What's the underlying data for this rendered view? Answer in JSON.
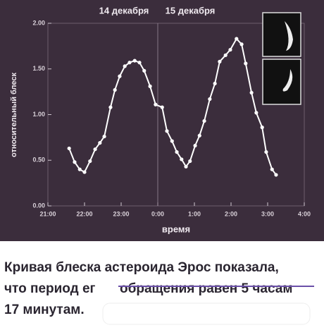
{
  "chart_data": {
    "type": "line",
    "annotations": [
      "14 декабря",
      "15 декабря"
    ],
    "xlabel": "время",
    "ylabel": "относительный блеск",
    "x": [
      21.58,
      21.73,
      21.87,
      22.0,
      22.15,
      22.29,
      22.42,
      22.54,
      22.71,
      22.83,
      22.96,
      23.1,
      23.23,
      23.37,
      23.5,
      23.63,
      23.79,
      23.94,
      24.12,
      24.25,
      24.39,
      24.52,
      24.65,
      24.77,
      24.88,
      25.02,
      25.14,
      25.27,
      25.42,
      25.56,
      25.69,
      25.85,
      25.98,
      26.15,
      26.29,
      26.4,
      26.56,
      26.69,
      26.85,
      26.96,
      27.12,
      27.23
    ],
    "series": [
      {
        "color": "#ffffff",
        "values": [
          0.63,
          0.48,
          0.4,
          0.37,
          0.49,
          0.62,
          0.69,
          0.76,
          1.08,
          1.27,
          1.42,
          1.53,
          1.57,
          1.59,
          1.57,
          1.48,
          1.31,
          1.11,
          1.08,
          0.82,
          0.71,
          0.59,
          0.51,
          0.43,
          0.49,
          0.66,
          0.77,
          0.93,
          1.17,
          1.34,
          1.58,
          1.65,
          1.71,
          1.83,
          1.77,
          1.56,
          1.24,
          1.02,
          0.86,
          0.59,
          0.4,
          0.34
        ]
      }
    ],
    "xlim": [
      21,
      28
    ],
    "xticks": [
      {
        "value": 21,
        "label": "21:00"
      },
      {
        "value": 22,
        "label": "22:00"
      },
      {
        "value": 23,
        "label": "23:00"
      },
      {
        "value": 24,
        "label": "0:00"
      },
      {
        "value": 25,
        "label": "1:00"
      },
      {
        "value": 26,
        "label": "2:00"
      },
      {
        "value": 27,
        "label": "3:00"
      },
      {
        "value": 28,
        "label": "4:00"
      }
    ],
    "ylim": [
      0,
      2
    ],
    "yticks": [
      {
        "value": 0,
        "label": "0.00"
      },
      {
        "value": 0.5,
        "label": "0.50"
      },
      {
        "value": 1,
        "label": "1.00"
      },
      {
        "value": 1.5,
        "label": "1.50"
      },
      {
        "value": 2,
        "label": "2.00"
      }
    ],
    "background": "#3b2d3c"
  },
  "caption": {
    "lines": [
      "Кривая блеска астероида Эрос показала,",
      "что период ег",
      "обращения равен 5 часам",
      "17 минутам."
    ]
  }
}
